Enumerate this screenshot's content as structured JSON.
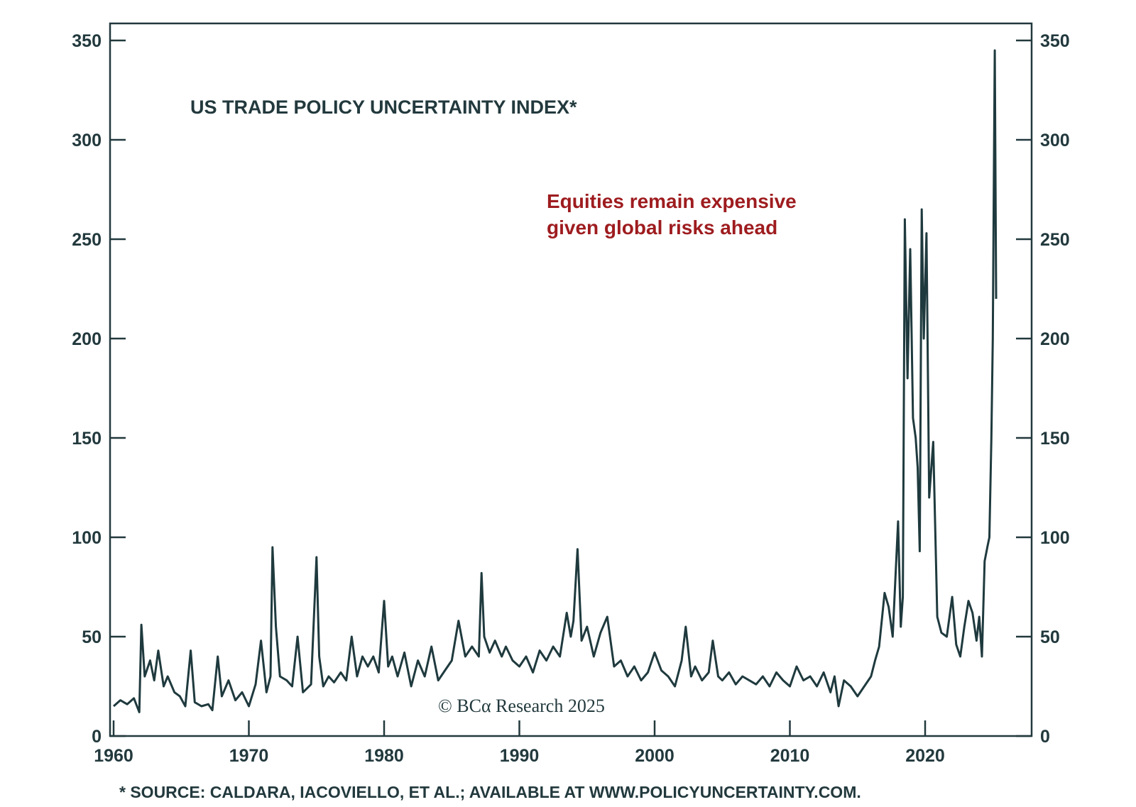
{
  "colors": {
    "line": "#1f3a3e",
    "text": "#22393d",
    "annotation": "#9e1c1f",
    "frame": "#22393d",
    "background": "#ffffff"
  },
  "credit": "© BCα Research 2025",
  "source_note": "* SOURCE: CALDARA, IACOVIELLO, ET AL.; AVAILABLE AT WWW.POLICYUNCERTAINTY.COM.",
  "chart_data": {
    "type": "line",
    "title": "US TRADE POLICY UNCERTAINTY INDEX*",
    "annotation": [
      "Equities remain expensive",
      "given global risks ahead"
    ],
    "xlim": [
      1960,
      2028
    ],
    "ylim": [
      0,
      350
    ],
    "x_ticks": [
      1960,
      1970,
      1980,
      1990,
      2000,
      2010,
      2020
    ],
    "x_tick_labels": [
      "1960",
      "1970",
      "1980",
      "1990",
      "2000",
      "2010",
      "2020"
    ],
    "y_ticks": [
      0,
      50,
      100,
      150,
      200,
      250,
      300,
      350
    ],
    "y_tick_labels": [
      "0",
      "50",
      "100",
      "150",
      "200",
      "250",
      "300",
      "350"
    ],
    "y_axis_both_sides": true,
    "grid": false,
    "series": [
      {
        "x": [
          1960.0,
          1960.5,
          1961.0,
          1961.5,
          1961.9,
          1962.05,
          1962.3,
          1962.7,
          1963.0,
          1963.3,
          1963.7,
          1964.0,
          1964.5,
          1964.9,
          1965.3,
          1965.7,
          1966.0,
          1966.5,
          1967.0,
          1967.3,
          1967.7,
          1968.0,
          1968.5,
          1969.0,
          1969.5,
          1970.0,
          1970.5,
          1970.9,
          1971.3,
          1971.6,
          1971.75,
          1972.0,
          1972.3,
          1972.8,
          1973.2,
          1973.6,
          1974.0,
          1974.6,
          1975.0,
          1975.2,
          1975.5,
          1975.9,
          1976.3,
          1976.8,
          1977.2,
          1977.6,
          1978.0,
          1978.4,
          1978.8,
          1979.2,
          1979.6,
          1980.0,
          1980.3,
          1980.6,
          1981.0,
          1981.5,
          1982.0,
          1982.5,
          1983.0,
          1983.5,
          1984.0,
          1984.5,
          1985.0,
          1985.5,
          1986.0,
          1986.5,
          1987.0,
          1987.2,
          1987.4,
          1987.8,
          1988.2,
          1988.7,
          1989.0,
          1989.5,
          1990.0,
          1990.5,
          1991.0,
          1991.5,
          1992.0,
          1992.5,
          1993.0,
          1993.5,
          1993.8,
          1994.0,
          1994.3,
          1994.6,
          1995.0,
          1995.5,
          1996.0,
          1996.5,
          1997.0,
          1997.5,
          1998.0,
          1998.5,
          1999.0,
          1999.5,
          2000.0,
          2000.5,
          2001.0,
          2001.5,
          2002.0,
          2002.3,
          2002.7,
          2003.0,
          2003.5,
          2004.0,
          2004.3,
          2004.7,
          2005.0,
          2005.5,
          2006.0,
          2006.5,
          2007.0,
          2007.5,
          2008.0,
          2008.5,
          2009.0,
          2009.5,
          2010.0,
          2010.5,
          2011.0,
          2011.5,
          2012.0,
          2012.5,
          2013.0,
          2013.3,
          2013.6,
          2014.0,
          2014.5,
          2015.0,
          2015.5,
          2016.0,
          2016.3,
          2016.6,
          2017.0,
          2017.3,
          2017.6,
          2018.0,
          2018.2,
          2018.35,
          2018.5,
          2018.7,
          2018.9,
          2019.1,
          2019.3,
          2019.45,
          2019.6,
          2019.75,
          2019.9,
          2020.1,
          2020.3,
          2020.6,
          2020.9,
          2021.2,
          2021.6,
          2022.0,
          2022.3,
          2022.6,
          2022.9,
          2023.2,
          2023.5,
          2023.8,
          2024.0,
          2024.2,
          2024.4,
          2024.6,
          2024.75,
          2024.9,
          2025.0,
          2025.1,
          2025.15,
          2025.25
        ],
        "values": [
          15,
          18,
          16,
          19,
          12,
          56,
          30,
          38,
          28,
          43,
          25,
          30,
          22,
          20,
          15,
          43,
          17,
          15,
          16,
          13,
          40,
          20,
          28,
          18,
          22,
          15,
          26,
          48,
          22,
          30,
          95,
          55,
          30,
          28,
          25,
          50,
          22,
          26,
          90,
          40,
          25,
          30,
          27,
          32,
          28,
          50,
          30,
          40,
          35,
          40,
          32,
          68,
          35,
          40,
          30,
          42,
          25,
          38,
          30,
          45,
          28,
          33,
          38,
          58,
          40,
          45,
          40,
          82,
          50,
          42,
          48,
          40,
          45,
          38,
          35,
          40,
          32,
          43,
          38,
          45,
          40,
          62,
          50,
          58,
          94,
          48,
          55,
          40,
          52,
          60,
          35,
          38,
          30,
          35,
          28,
          32,
          42,
          33,
          30,
          25,
          38,
          55,
          30,
          35,
          28,
          32,
          48,
          30,
          28,
          32,
          26,
          30,
          28,
          26,
          30,
          25,
          32,
          28,
          25,
          35,
          28,
          30,
          25,
          32,
          22,
          30,
          15,
          28,
          25,
          20,
          25,
          30,
          38,
          45,
          72,
          65,
          50,
          108,
          55,
          70,
          260,
          180,
          245,
          160,
          150,
          135,
          93,
          265,
          200,
          253,
          120,
          148,
          60,
          52,
          50,
          70,
          46,
          40,
          55,
          68,
          62,
          48,
          60,
          40,
          88,
          95,
          100,
          150,
          200,
          300,
          345,
          220
        ]
      }
    ]
  }
}
